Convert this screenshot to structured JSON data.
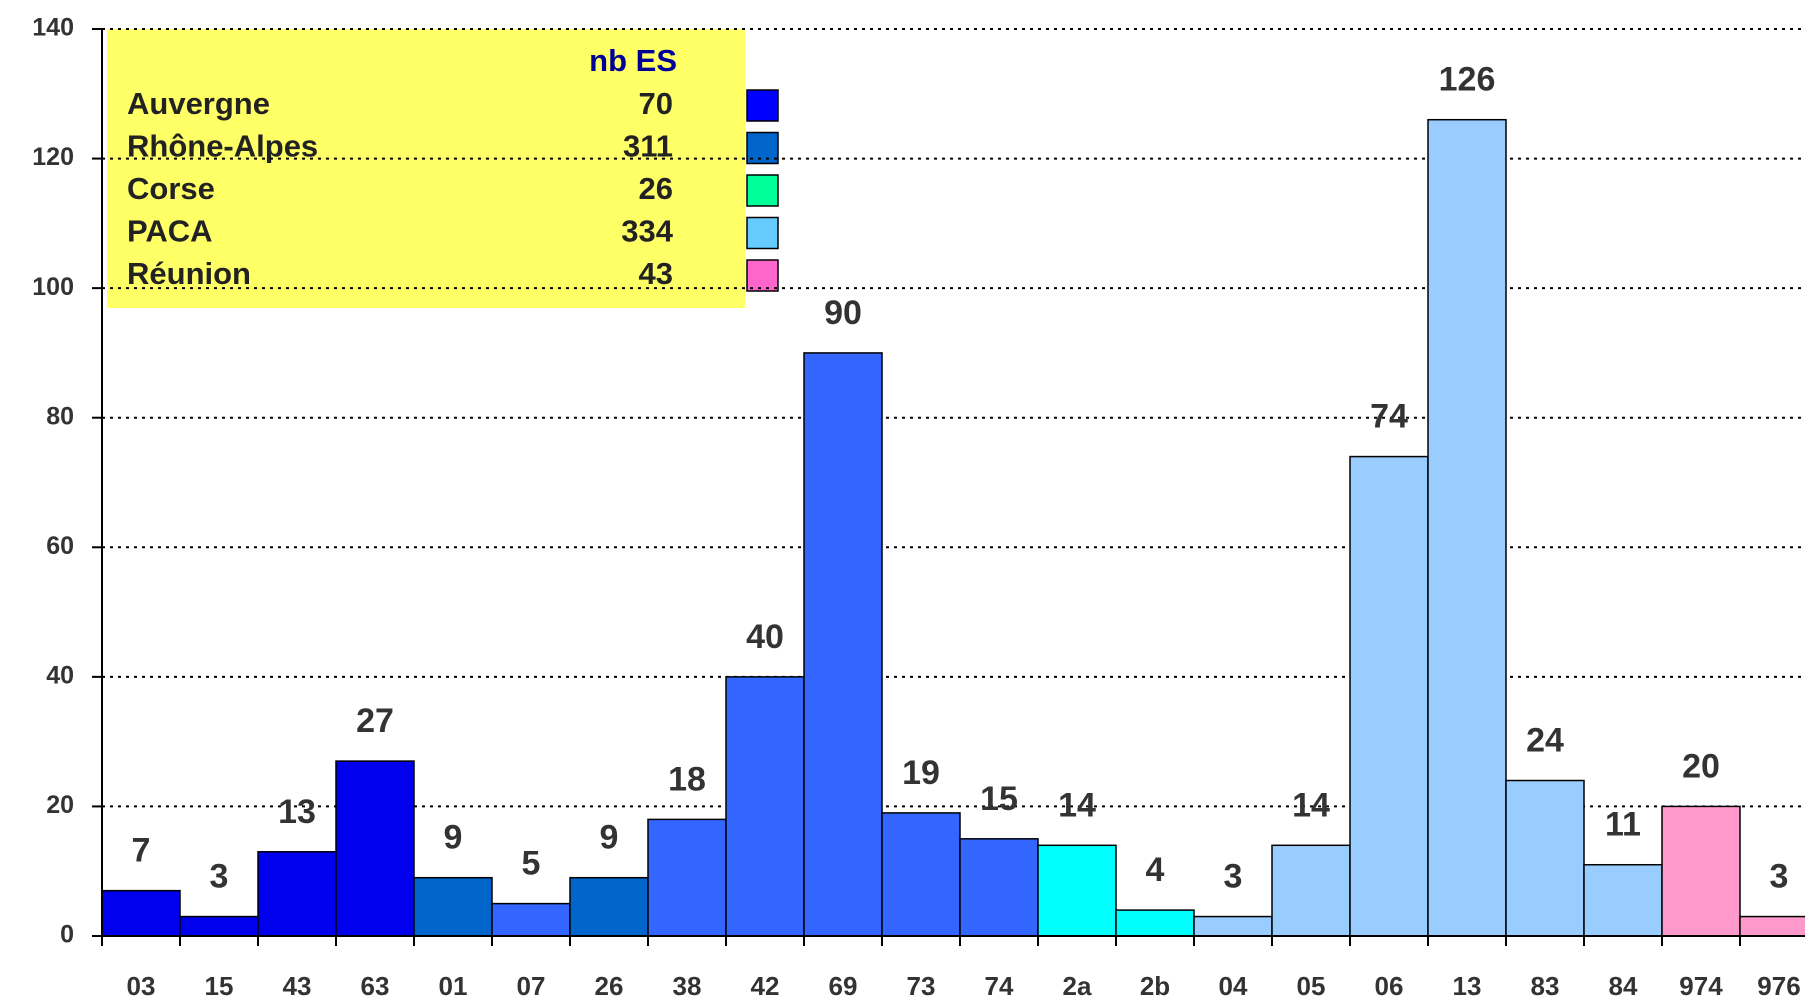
{
  "chart_data": {
    "type": "bar",
    "categories": [
      "03",
      "15",
      "43",
      "63",
      "01",
      "07",
      "26",
      "38",
      "42",
      "69",
      "73",
      "74",
      "2a",
      "2b",
      "04",
      "05",
      "06",
      "13",
      "83",
      "84",
      "974",
      "976"
    ],
    "values": [
      7,
      3,
      13,
      27,
      9,
      5,
      9,
      18,
      40,
      90,
      19,
      15,
      14,
      4,
      3,
      14,
      74,
      126,
      24,
      11,
      20,
      3
    ],
    "colors": [
      "#0000ee",
      "#0000ee",
      "#0000ee",
      "#0000ee",
      "#0066cc",
      "#3366ff",
      "#0066cc",
      "#3366ff",
      "#3366ff",
      "#3366ff",
      "#3366ff",
      "#3366ff",
      "#00ffff",
      "#00ffff",
      "#99ccff",
      "#99ccff",
      "#99ccff",
      "#99ccff",
      "#99ccff",
      "#99ccff",
      "#ff99cc",
      "#ff99cc"
    ],
    "ylim": [
      0,
      140
    ],
    "yticks": [
      0,
      20,
      40,
      60,
      80,
      100,
      120,
      140
    ],
    "grid": true,
    "legend": {
      "header": "nb ES",
      "entries": [
        {
          "name": "Auvergne",
          "value": 70,
          "color": "#0000ff"
        },
        {
          "name": "Rhône-Alpes",
          "value": 311,
          "color": "#0066cc"
        },
        {
          "name": "Corse",
          "value": 26,
          "color": "#00ff99"
        },
        {
          "name": "PACA",
          "value": 334,
          "color": "#66ccff"
        },
        {
          "name": "Réunion",
          "value": 43,
          "color": "#ff66cc"
        }
      ]
    }
  }
}
